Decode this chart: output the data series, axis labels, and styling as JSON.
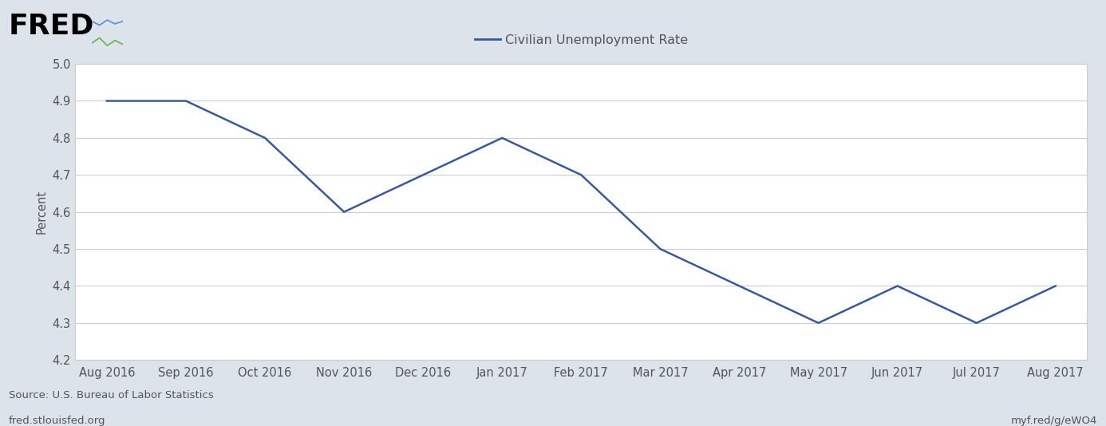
{
  "title": "Civilian Unemployment Rate",
  "ylabel": "Percent",
  "line_color": "#3B5998",
  "line_width": 1.8,
  "background_color": "#ffffff",
  "outer_background": "#dce3ea",
  "ylim": [
    4.2,
    5.0
  ],
  "yticks": [
    4.2,
    4.3,
    4.4,
    4.5,
    4.6,
    4.7,
    4.8,
    4.9,
    5.0
  ],
  "x_labels": [
    "Aug 2016",
    "Sep 2016",
    "Oct 2016",
    "Nov 2016",
    "Dec 2016",
    "Jan 2017",
    "Feb 2017",
    "Mar 2017",
    "Apr 2017",
    "May 2017",
    "Jun 2017",
    "Jul 2017",
    "Aug 2017"
  ],
  "values": [
    4.9,
    4.9,
    4.8,
    4.6,
    4.7,
    4.8,
    4.7,
    4.5,
    4.4,
    4.3,
    4.4,
    4.3,
    4.4
  ],
  "source_text": "Source: U.S. Bureau of Labor Statistics",
  "url_left": "fred.stlouisfed.org",
  "url_right": "myf.red/g/eWO4",
  "legend_label": "Civilian Unemployment Rate",
  "tick_fontsize": 10.5,
  "ylabel_fontsize": 10.5,
  "source_fontsize": 9.5,
  "legend_fontsize": 11.5,
  "fred_fontsize": 26
}
